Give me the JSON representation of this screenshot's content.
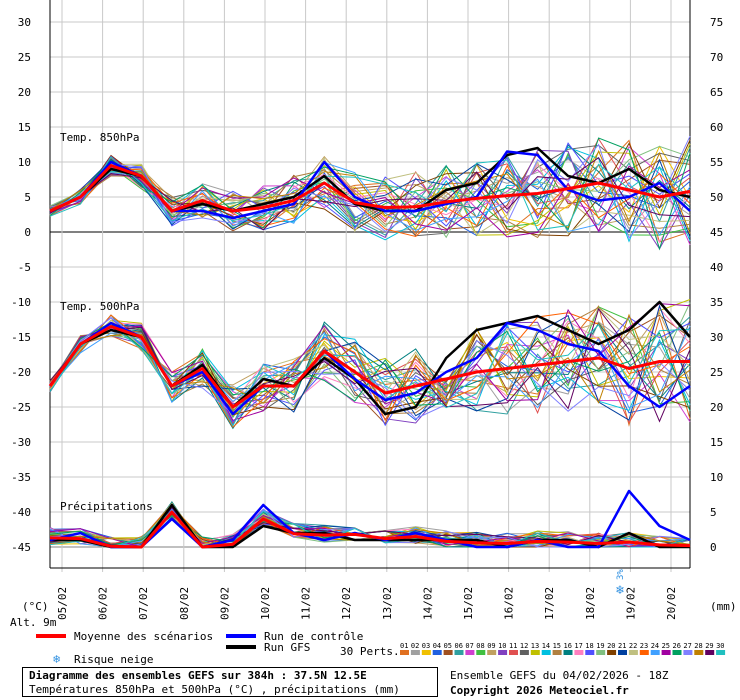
{
  "chart_data": {
    "type": "line",
    "title": "Diagramme des ensembles GEFS sur 384h : 37.5N 12.5E",
    "subtitle": "Températures 850hPa et 500hPa (°C) , précipitations (mm)",
    "panels": [
      "Temp. 850hPa",
      "Temp. 500hPa",
      "Précipitations"
    ],
    "left_axis": {
      "unit": "(°C)",
      "ticks": [
        30,
        25,
        20,
        15,
        10,
        5,
        0,
        -5,
        -10,
        -15,
        -20,
        -25,
        -30,
        -35,
        -40,
        -45
      ],
      "ylim": [
        -45,
        30
      ]
    },
    "right_axis": {
      "unit": "(mm)",
      "ticks": [
        75,
        70,
        65,
        60,
        55,
        50,
        45,
        40,
        35,
        30,
        25,
        20,
        15,
        10,
        5,
        0
      ],
      "ylim": [
        0,
        75
      ]
    },
    "x": [
      "05/02",
      "06/02",
      "07/02",
      "08/02",
      "09/02",
      "10/02",
      "11/02",
      "12/02",
      "13/02",
      "14/02",
      "15/02",
      "16/02",
      "17/02",
      "18/02",
      "19/02",
      "20/02"
    ],
    "altitude_label": "Alt. 9m",
    "snow_risk_marker": {
      "date": "19/02",
      "label": "3%"
    },
    "series": [
      {
        "name": "Moyenne des scénarios",
        "color": "#ff0000",
        "t850": [
          3,
          5,
          9.5,
          8,
          3,
          4.5,
          3,
          3.5,
          4.5,
          7,
          4.2,
          3.5,
          3.6,
          4.3,
          4.8,
          5.2,
          5.5,
          6.2,
          7,
          6,
          5,
          5.8
        ],
        "t500": [
          -22,
          -16,
          -13.5,
          -15,
          -22,
          -19.5,
          -25,
          -22,
          -22,
          -17,
          -20,
          -23,
          -22,
          -21,
          -20,
          -19.5,
          -19,
          -18.5,
          -18,
          -19.5,
          -18.5,
          -18.5
        ],
        "precip": [
          1.3,
          1.2,
          0.1,
          0,
          5,
          0,
          0.4,
          4,
          1.9,
          1.7,
          1.8,
          1.2,
          1.5,
          0.8,
          0.6,
          0.5,
          0.8,
          0.7,
          0.5,
          0.7,
          0.3,
          0.2
        ]
      },
      {
        "name": "Run de contrôle",
        "color": "#0000ff",
        "t850": [
          3,
          5,
          10,
          8,
          3,
          3,
          2,
          3,
          4,
          10,
          5,
          3,
          3,
          4,
          5,
          11.5,
          11,
          6,
          4.5,
          5,
          7,
          3
        ],
        "t500": [
          -22,
          -16,
          -13,
          -15,
          -22,
          -20,
          -26,
          -22,
          -22,
          -17,
          -21,
          -24,
          -23,
          -20,
          -18,
          -13,
          -14,
          -16,
          -17,
          -22,
          -25,
          -22
        ],
        "precip": [
          1,
          2,
          0,
          0,
          4,
          0,
          1,
          6,
          2,
          1,
          2,
          1,
          2,
          1,
          0,
          0,
          1,
          0,
          0,
          8,
          3,
          1
        ]
      },
      {
        "name": "Run GFS",
        "color": "#000000",
        "t850": [
          3,
          5,
          9,
          8,
          3,
          4,
          3,
          4,
          5,
          8,
          4,
          3,
          3,
          6,
          7,
          11,
          12,
          8,
          7,
          9,
          6,
          5
        ],
        "t500": [
          -22,
          -16,
          -14,
          -15,
          -22,
          -19,
          -25,
          -21,
          -22,
          -18,
          -21,
          -26,
          -25,
          -18,
          -14,
          -13,
          -12,
          -14,
          -16,
          -14,
          -10,
          -15
        ],
        "precip": [
          1,
          1,
          0,
          0,
          6,
          0,
          0,
          3,
          2,
          2,
          1,
          1,
          1,
          1,
          1,
          0,
          1,
          1,
          0,
          2,
          0,
          0
        ]
      }
    ],
    "members": {
      "label": "30 Perts.",
      "ids": [
        "01",
        "02",
        "03",
        "04",
        "05",
        "06",
        "07",
        "08",
        "09",
        "10",
        "11",
        "12",
        "13",
        "14",
        "15",
        "16",
        "17",
        "18",
        "19",
        "20",
        "21",
        "22",
        "23",
        "24",
        "25",
        "26",
        "27",
        "28",
        "29",
        "30"
      ],
      "colors": [
        "#e07020",
        "#a0a0a0",
        "#f0c000",
        "#2060e0",
        "#a05020",
        "#30a0a0",
        "#d040d0",
        "#40c040",
        "#c0a060",
        "#8040c0",
        "#e05050",
        "#606060",
        "#c0c000",
        "#00c0e0",
        "#b08040",
        "#008080",
        "#ff80c0",
        "#5050ff",
        "#80c080",
        "#804000",
        "#0040a0",
        "#c0c080",
        "#ff6000",
        "#40a0ff",
        "#a000a0",
        "#00a060",
        "#8080ff",
        "#c08000",
        "#600060",
        "#20c0c0"
      ]
    }
  },
  "legend": {
    "mean": "Moyenne des scénarios",
    "control": "Run de contrôle",
    "gfs": "Run GFS",
    "snow": "Risque neige",
    "perts": "30 Perts."
  },
  "footer": {
    "title": "Diagramme des ensembles GEFS sur 384h : 37.5N 12.5E",
    "subtitle": "Températures 850hPa et 500hPa (°C) , précipitations (mm)",
    "run": "Ensemble GEFS du 04/02/2026 - 18Z",
    "copyright": "Copyright 2026 Meteociel.fr"
  }
}
